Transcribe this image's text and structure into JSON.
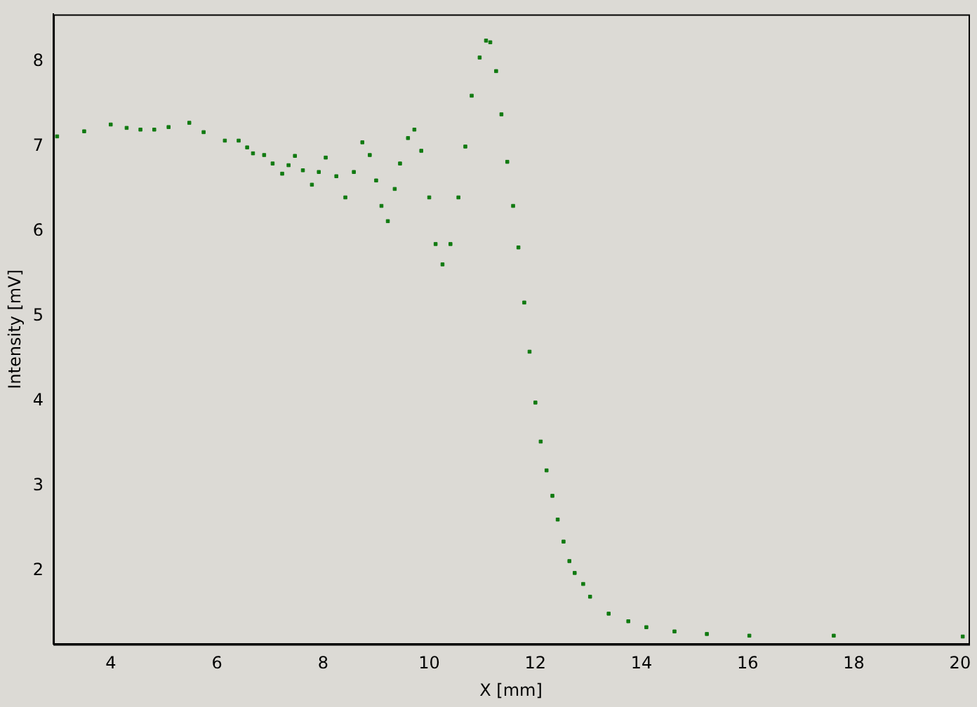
{
  "chart_data": {
    "type": "scatter",
    "xlabel": "X [mm]",
    "ylabel": "Intensity [mV]",
    "marker": "square",
    "grid": false,
    "legend": false,
    "xlim": [
      2.92,
      20.16
    ],
    "ylim": [
      1.13,
      8.56
    ],
    "xticks": [
      4,
      6,
      8,
      10,
      12,
      14,
      16,
      18,
      20
    ],
    "yticks": [
      2,
      3,
      4,
      5,
      6,
      7,
      8
    ],
    "series": [
      {
        "color": "#117a11",
        "x": [
          2.99,
          3.5,
          4.0,
          4.3,
          4.56,
          4.82,
          5.09,
          5.48,
          5.75,
          6.15,
          6.41,
          6.57,
          6.68,
          6.89,
          7.05,
          7.23,
          7.35,
          7.47,
          7.62,
          7.79,
          7.92,
          8.05,
          8.25,
          8.42,
          8.58,
          8.74,
          8.88,
          9.0,
          9.1,
          9.22,
          9.35,
          9.45,
          9.6,
          9.72,
          9.85,
          10.0,
          10.12,
          10.25,
          10.4,
          10.55,
          10.68,
          10.8,
          10.95,
          11.07,
          11.15,
          11.26,
          11.36,
          11.47,
          11.58,
          11.68,
          11.79,
          11.89,
          12.0,
          12.1,
          12.21,
          12.32,
          12.42,
          12.53,
          12.64,
          12.74,
          12.9,
          13.03,
          13.38,
          13.75,
          14.09,
          14.62,
          15.23,
          16.03,
          17.62,
          20.05
        ],
        "values": [
          7.12,
          7.18,
          7.26,
          7.22,
          7.2,
          7.2,
          7.23,
          7.28,
          7.17,
          7.07,
          7.07,
          6.99,
          6.92,
          6.9,
          6.8,
          6.68,
          6.78,
          6.89,
          6.72,
          6.55,
          6.7,
          6.87,
          6.65,
          6.4,
          6.7,
          7.05,
          6.9,
          6.6,
          6.3,
          6.12,
          6.5,
          6.8,
          7.1,
          7.2,
          6.95,
          6.4,
          5.85,
          5.61,
          5.85,
          6.4,
          7.0,
          7.6,
          8.05,
          8.25,
          8.23,
          7.89,
          7.38,
          6.82,
          6.3,
          5.81,
          5.16,
          4.58,
          3.98,
          3.52,
          3.18,
          2.88,
          2.6,
          2.34,
          2.11,
          1.97,
          1.84,
          1.69,
          1.49,
          1.4,
          1.33,
          1.28,
          1.25,
          1.23,
          1.23,
          1.22
        ]
      }
    ]
  }
}
